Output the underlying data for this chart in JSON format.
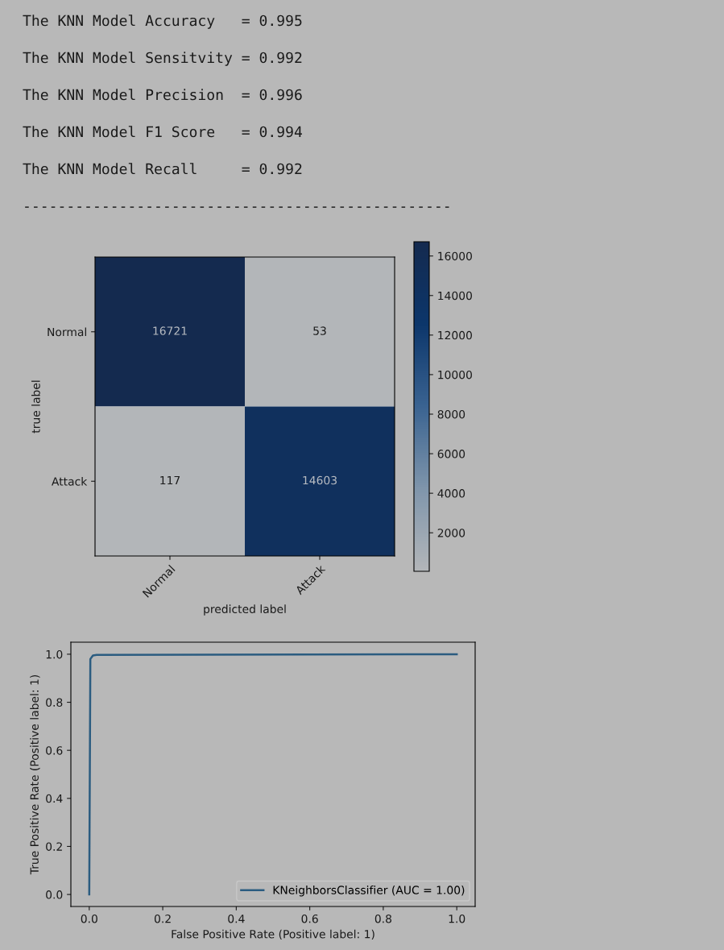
{
  "chart_data": [
    {
      "type": "other",
      "annotations": [
        "The KNN Model Accuracy   = 0.995",
        "The KNN Model Sensitvity = 0.992",
        "The KNN Model Precision  = 0.996",
        "The KNN Model F1 Score   = 0.994",
        "The KNN Model Recall     = 0.992",
        "-------------------------------------------------"
      ]
    },
    {
      "type": "heatmap",
      "categories": [
        "Normal",
        "Attack"
      ],
      "y_categories": [
        "Normal",
        "Attack"
      ],
      "cells": [
        [
          16721,
          53
        ],
        [
          117,
          14603
        ]
      ],
      "data_labels": true,
      "xlabel": "predicted label",
      "ylabel": "true label",
      "clim": [
        53,
        16721
      ],
      "cticks": [
        2000,
        4000,
        6000,
        8000,
        10000,
        12000,
        14000,
        16000
      ]
    },
    {
      "type": "line",
      "xlabel": "False Positive Rate (Positive label: 1)",
      "ylabel": "True Positive Rate (Positive label: 1)",
      "series": [
        {
          "name": "KNeighborsClassifier (AUC = 1.00)",
          "color": "#2b5c80",
          "x": [
            0,
            0.003,
            0.01,
            0.02,
            1
          ],
          "values": [
            0,
            0.98,
            0.995,
            0.997,
            1
          ]
        }
      ],
      "xlim": [
        -0.05,
        1.05
      ],
      "ylim": [
        -0.05,
        1.05
      ],
      "xticks": [
        {
          "value": 0,
          "label": "0.0"
        },
        {
          "value": 0.2,
          "label": "0.2"
        },
        {
          "value": 0.4,
          "label": "0.4"
        },
        {
          "value": 0.6,
          "label": "0.6"
        },
        {
          "value": 0.8,
          "label": "0.8"
        },
        {
          "value": 1,
          "label": "1.0"
        }
      ],
      "yticks": [
        {
          "value": 0,
          "label": "0.0"
        },
        {
          "value": 0.2,
          "label": "0.2"
        },
        {
          "value": 0.4,
          "label": "0.4"
        },
        {
          "value": 0.6,
          "label": "0.6"
        },
        {
          "value": 0.8,
          "label": "0.8"
        },
        {
          "value": 1,
          "label": "1.0"
        }
      ],
      "legend": "bottom right",
      "grid": false
    }
  ]
}
